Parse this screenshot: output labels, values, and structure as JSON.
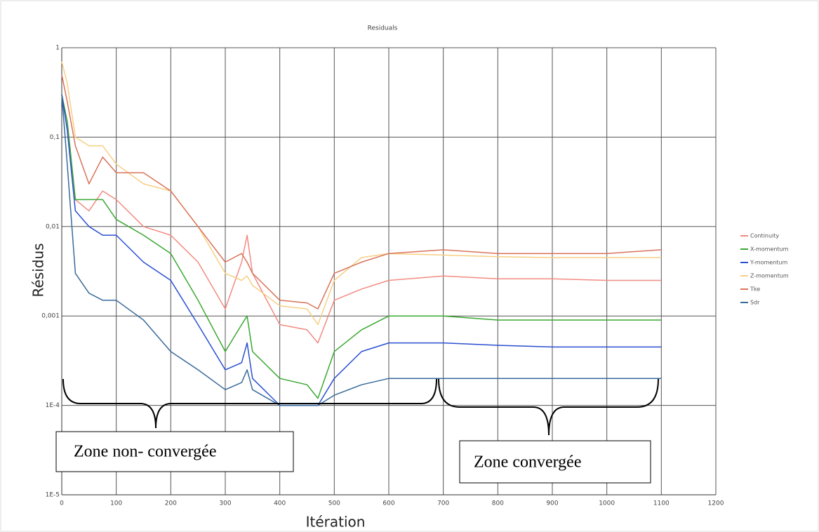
{
  "chart_data": {
    "type": "line",
    "title": "Residuals",
    "x_label": "Itération",
    "y_label": "Résidus",
    "x": [
      0,
      10,
      25,
      50,
      75,
      100,
      150,
      200,
      250,
      300,
      330,
      340,
      350,
      400,
      450,
      470,
      500,
      550,
      600,
      700,
      800,
      900,
      1000,
      1100
    ],
    "series": [
      {
        "name": "Continuity",
        "color": "#f28b82",
        "values": [
          0.3,
          0.15,
          0.02,
          0.015,
          0.025,
          0.02,
          0.01,
          0.008,
          0.004,
          0.0012,
          0.004,
          0.008,
          0.003,
          0.0008,
          0.0007,
          0.0005,
          0.0015,
          0.002,
          0.0025,
          0.0028,
          0.0026,
          0.0026,
          0.0025,
          0.0025
        ]
      },
      {
        "name": "X-momentum",
        "color": "#3aa832",
        "values": [
          0.3,
          0.15,
          0.02,
          0.02,
          0.02,
          0.012,
          0.008,
          0.005,
          0.0015,
          0.0004,
          0.0008,
          0.001,
          0.0004,
          0.0002,
          0.00017,
          0.00012,
          0.0004,
          0.0007,
          0.001,
          0.001,
          0.0009,
          0.0009,
          0.0009,
          0.0009
        ]
      },
      {
        "name": "Y-momentum",
        "color": "#2a4fd0",
        "values": [
          0.3,
          0.12,
          0.015,
          0.01,
          0.008,
          0.008,
          0.004,
          0.0025,
          0.0008,
          0.00025,
          0.0003,
          0.0005,
          0.0002,
          0.0001,
          0.0001,
          0.0001,
          0.0002,
          0.0004,
          0.0005,
          0.0005,
          0.00047,
          0.00045,
          0.00045,
          0.00045
        ]
      },
      {
        "name": "Z-momentum",
        "color": "#f7cf84",
        "values": [
          0.7,
          0.4,
          0.1,
          0.08,
          0.08,
          0.05,
          0.03,
          0.025,
          0.01,
          0.003,
          0.0025,
          0.0028,
          0.0022,
          0.0013,
          0.0012,
          0.0008,
          0.0025,
          0.0045,
          0.005,
          0.0048,
          0.0046,
          0.0045,
          0.0045,
          0.0045
        ]
      },
      {
        "name": "Tke",
        "color": "#d9735a",
        "values": [
          0.5,
          0.25,
          0.08,
          0.03,
          0.06,
          0.04,
          0.04,
          0.025,
          0.01,
          0.004,
          0.005,
          0.004,
          0.003,
          0.0015,
          0.0014,
          0.0012,
          0.003,
          0.004,
          0.005,
          0.0055,
          0.005,
          0.005,
          0.005,
          0.0055
        ]
      },
      {
        "name": "Sdr",
        "color": "#3a6a9a",
        "values": [
          0.3,
          0.05,
          0.003,
          0.0018,
          0.0015,
          0.0015,
          0.0009,
          0.0004,
          0.00025,
          0.00015,
          0.00018,
          0.00025,
          0.00015,
          0.0001,
          0.0001,
          0.0001,
          0.00013,
          0.00017,
          0.0002,
          0.0002,
          0.0002,
          0.0002,
          0.0002,
          0.0002
        ]
      }
    ],
    "xlim": [
      0,
      1200
    ],
    "xticks": [
      0,
      100,
      200,
      300,
      400,
      500,
      600,
      700,
      800,
      900,
      1000,
      1100,
      1200
    ],
    "ylim": [
      1e-05,
      1
    ],
    "log_y": true,
    "yticks": [
      1,
      {
        "value": 0.1,
        "label": "0,1"
      },
      {
        "value": 0.01,
        "label": "0,01"
      },
      {
        "value": 0.001,
        "label": "0,001"
      },
      {
        "value": 0.0001,
        "label": "1E-4"
      },
      {
        "value": 1e-05,
        "label": "1E-5"
      }
    ],
    "grid": true,
    "legend": "right",
    "annotations": [
      "Zone non- convergée",
      "Zone convergée"
    ]
  }
}
